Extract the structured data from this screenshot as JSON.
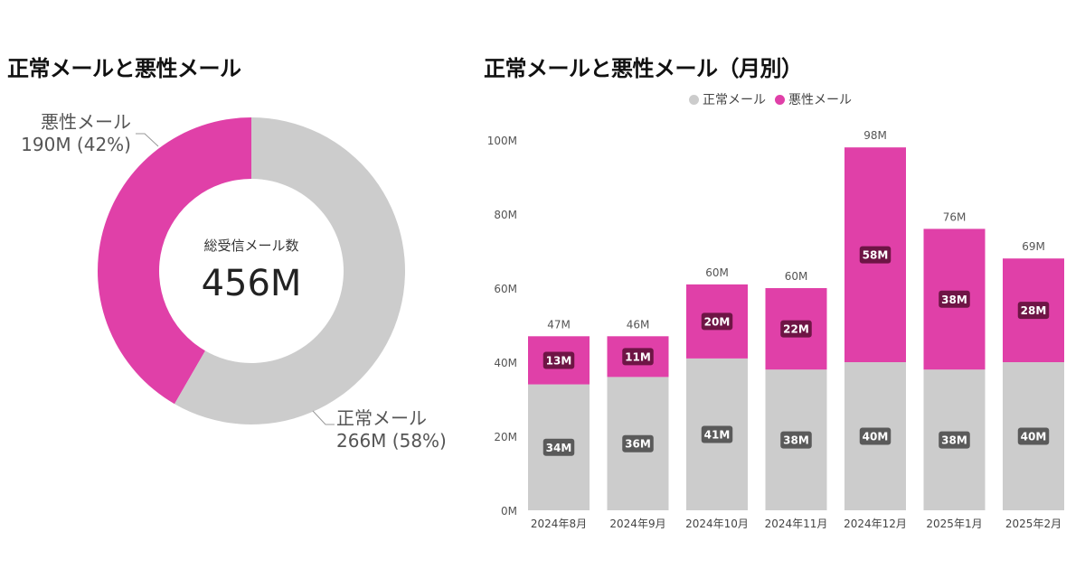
{
  "colors": {
    "normal": "#cccccc",
    "malicious": "#e040a8",
    "normal_badge": "#5a5a5a",
    "malicious_badge": "#6e1545"
  },
  "donut": {
    "title": "正常メールと悪性メール",
    "center_label": "総受信メール数",
    "center_value": "456M",
    "malicious_label": "悪性メール",
    "malicious_value": "190M (42%)",
    "normal_label": "正常メール",
    "normal_value": "266M (58%)"
  },
  "bar": {
    "title": "正常メールと悪性メール（月別）"
  },
  "chart_data": [
    {
      "type": "pie",
      "title": "正常メールと悪性メール",
      "labels": [
        "悪性メール",
        "正常メール"
      ],
      "values": [
        190,
        266
      ],
      "percentages": [
        42,
        58
      ],
      "unit": "M",
      "total": 456
    },
    {
      "type": "bar",
      "stacked": true,
      "title": "正常メールと悪性メール（月別）",
      "categories": [
        "2024年8月",
        "2024年9月",
        "2024年10月",
        "2024年11月",
        "2024年12月",
        "2025年1月",
        "2025年2月"
      ],
      "series": [
        {
          "name": "正常メール",
          "values": [
            34,
            36,
            41,
            38,
            40,
            38,
            40
          ]
        },
        {
          "name": "悪性メール",
          "values": [
            13,
            11,
            20,
            22,
            58,
            38,
            28
          ]
        }
      ],
      "totals": [
        47,
        46,
        60,
        60,
        98,
        76,
        69
      ],
      "unit": "M",
      "ylim": [
        0,
        100
      ],
      "yticks": [
        "0M",
        "20M",
        "40M",
        "60M",
        "80M",
        "100M"
      ],
      "legend": "top",
      "grid": false
    }
  ]
}
